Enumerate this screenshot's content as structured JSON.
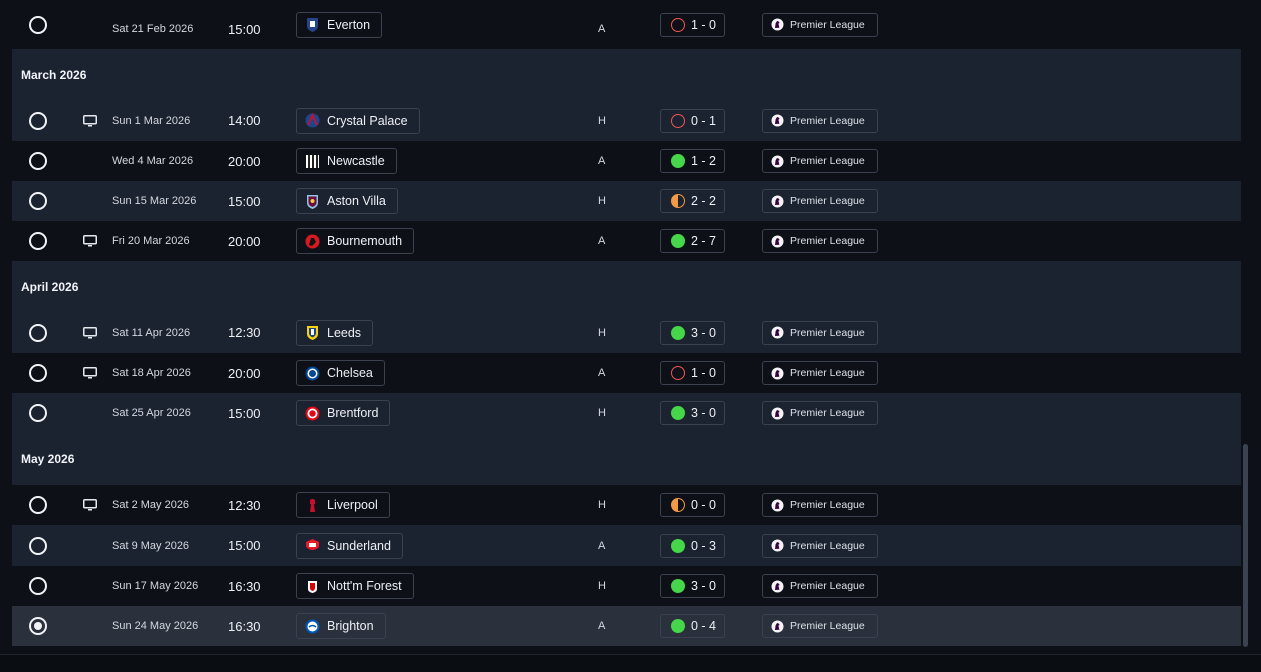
{
  "colors": {
    "background": "#0d1117",
    "alt_row": "#1b2230",
    "selected_row": "#2a313d",
    "win": "#45d64a",
    "draw": "#f29a44",
    "loss": "#f05656"
  },
  "months": [
    {
      "label": "March 2026"
    },
    {
      "label": "April 2026"
    },
    {
      "label": "May 2026"
    }
  ],
  "fixtures": [
    {
      "date": "Sat 21 Feb 2026",
      "time": "15:00",
      "team": "Everton",
      "crest": "everton-crest",
      "venue": "A",
      "score": "1 - 0",
      "outcome": "loss",
      "competition": "Premier League",
      "tv": false,
      "selected": false
    },
    {
      "date": "Sun 1 Mar 2026",
      "time": "14:00",
      "team": "Crystal Palace",
      "crest": "crystal-palace-crest",
      "venue": "H",
      "score": "0 - 1",
      "outcome": "loss",
      "competition": "Premier League",
      "tv": true,
      "selected": false
    },
    {
      "date": "Wed 4 Mar 2026",
      "time": "20:00",
      "team": "Newcastle",
      "crest": "newcastle-crest",
      "venue": "A",
      "score": "1 - 2",
      "outcome": "win",
      "competition": "Premier League",
      "tv": false,
      "selected": false
    },
    {
      "date": "Sun 15 Mar 2026",
      "time": "15:00",
      "team": "Aston Villa",
      "crest": "aston-villa-crest",
      "venue": "H",
      "score": "2 - 2",
      "outcome": "draw",
      "competition": "Premier League",
      "tv": false,
      "selected": false
    },
    {
      "date": "Fri 20 Mar 2026",
      "time": "20:00",
      "team": "Bournemouth",
      "crest": "bournemouth-crest",
      "venue": "A",
      "score": "2 - 7",
      "outcome": "win",
      "competition": "Premier League",
      "tv": true,
      "selected": false
    },
    {
      "date": "Sat 11 Apr 2026",
      "time": "12:30",
      "team": "Leeds",
      "crest": "leeds-crest",
      "venue": "H",
      "score": "3 - 0",
      "outcome": "win",
      "competition": "Premier League",
      "tv": true,
      "selected": false
    },
    {
      "date": "Sat 18 Apr 2026",
      "time": "20:00",
      "team": "Chelsea",
      "crest": "chelsea-crest",
      "venue": "A",
      "score": "1 - 0",
      "outcome": "loss",
      "competition": "Premier League",
      "tv": true,
      "selected": false
    },
    {
      "date": "Sat 25 Apr 2026",
      "time": "15:00",
      "team": "Brentford",
      "crest": "brentford-crest",
      "venue": "H",
      "score": "3 - 0",
      "outcome": "win",
      "competition": "Premier League",
      "tv": false,
      "selected": false
    },
    {
      "date": "Sat 2 May 2026",
      "time": "12:30",
      "team": "Liverpool",
      "crest": "liverpool-crest",
      "venue": "H",
      "score": "0 - 0",
      "outcome": "draw",
      "competition": "Premier League",
      "tv": true,
      "selected": false
    },
    {
      "date": "Sat 9 May 2026",
      "time": "15:00",
      "team": "Sunderland",
      "crest": "sunderland-crest",
      "venue": "A",
      "score": "0 - 3",
      "outcome": "win",
      "competition": "Premier League",
      "tv": false,
      "selected": false
    },
    {
      "date": "Sun 17 May 2026",
      "time": "16:30",
      "team": "Nott'm Forest",
      "crest": "nottm-forest-crest",
      "venue": "H",
      "score": "3 - 0",
      "outcome": "win",
      "competition": "Premier League",
      "tv": false,
      "selected": false
    },
    {
      "date": "Sun 24 May 2026",
      "time": "16:30",
      "team": "Brighton",
      "crest": "brighton-crest",
      "venue": "A",
      "score": "0 - 4",
      "outcome": "win",
      "competition": "Premier League",
      "tv": false,
      "selected": true
    }
  ]
}
